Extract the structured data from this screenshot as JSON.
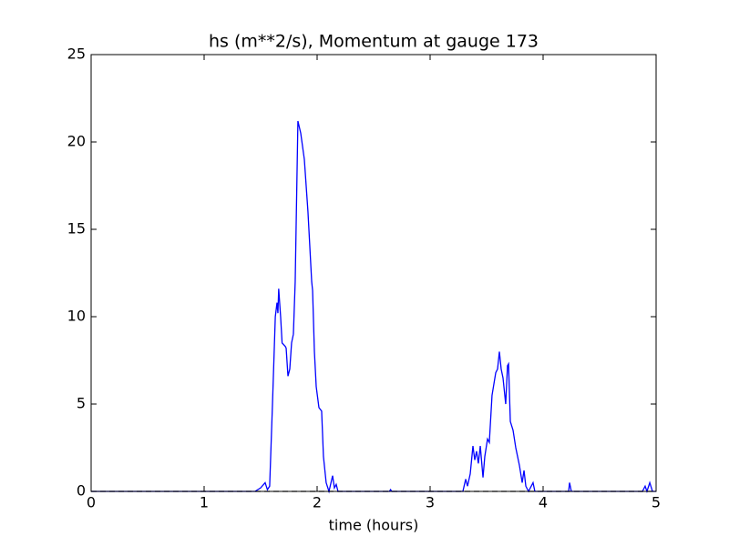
{
  "chart_data": {
    "type": "line",
    "title": "hs (m**2/s), Momentum at gauge 173",
    "xlabel": "time (hours)",
    "xlim": [
      0,
      5
    ],
    "ylim": [
      0,
      25
    ],
    "xticks": [
      0,
      1,
      2,
      3,
      4,
      5
    ],
    "yticks": [
      0,
      5,
      10,
      15,
      20,
      25
    ],
    "series": [
      {
        "color": "#0000ff",
        "style": "solid",
        "x": [
          0,
          1.45,
          1.5,
          1.54,
          1.56,
          1.58,
          1.605,
          1.63,
          1.645,
          1.653,
          1.66,
          1.677,
          1.69,
          1.718,
          1.726,
          1.742,
          1.758,
          1.774,
          1.79,
          1.806,
          1.83,
          1.855,
          1.887,
          1.919,
          1.952,
          1.96,
          1.976,
          1.992,
          2.016,
          2.04,
          2.056,
          2.08,
          2.105,
          2.137,
          2.153,
          2.169,
          2.185,
          2.64,
          2.65,
          2.66,
          3.29,
          3.315,
          3.331,
          3.355,
          3.379,
          3.395,
          3.411,
          3.427,
          3.444,
          3.468,
          3.484,
          3.508,
          3.524,
          3.548,
          3.581,
          3.597,
          3.613,
          3.629,
          3.645,
          3.669,
          3.685,
          3.694,
          3.71,
          3.734,
          3.758,
          3.79,
          3.815,
          3.831,
          3.847,
          3.871,
          3.911,
          3.927,
          4.226,
          4.234,
          4.25,
          4.879,
          4.903,
          4.919,
          4.944,
          4.968,
          5
        ],
        "values": [
          0,
          0,
          0.2,
          0.5,
          0.1,
          0.3,
          5,
          10,
          10.8,
          10.2,
          11.6,
          10,
          8.5,
          8.3,
          8.2,
          6.6,
          7,
          8.5,
          9,
          12,
          21.2,
          20.5,
          19,
          16,
          12,
          11.5,
          8,
          6,
          4.8,
          4.6,
          2,
          0.5,
          0,
          0.9,
          0.2,
          0.4,
          0,
          0,
          0.1,
          0,
          0,
          0.7,
          0.3,
          1,
          2.6,
          1.8,
          2.3,
          1.6,
          2.6,
          0.8,
          2,
          3,
          2.8,
          5.5,
          6.8,
          7,
          8,
          7,
          6.5,
          5,
          7.2,
          7.3,
          4,
          3.5,
          2.5,
          1.5,
          0.5,
          1.2,
          0.3,
          0,
          0.5,
          0,
          0,
          0.5,
          0,
          0,
          0.3,
          0,
          0.5,
          0,
          0
        ]
      },
      {
        "color": "#000000",
        "style": "dashed",
        "x": [
          0,
          5
        ],
        "values": [
          0,
          0
        ]
      }
    ]
  }
}
